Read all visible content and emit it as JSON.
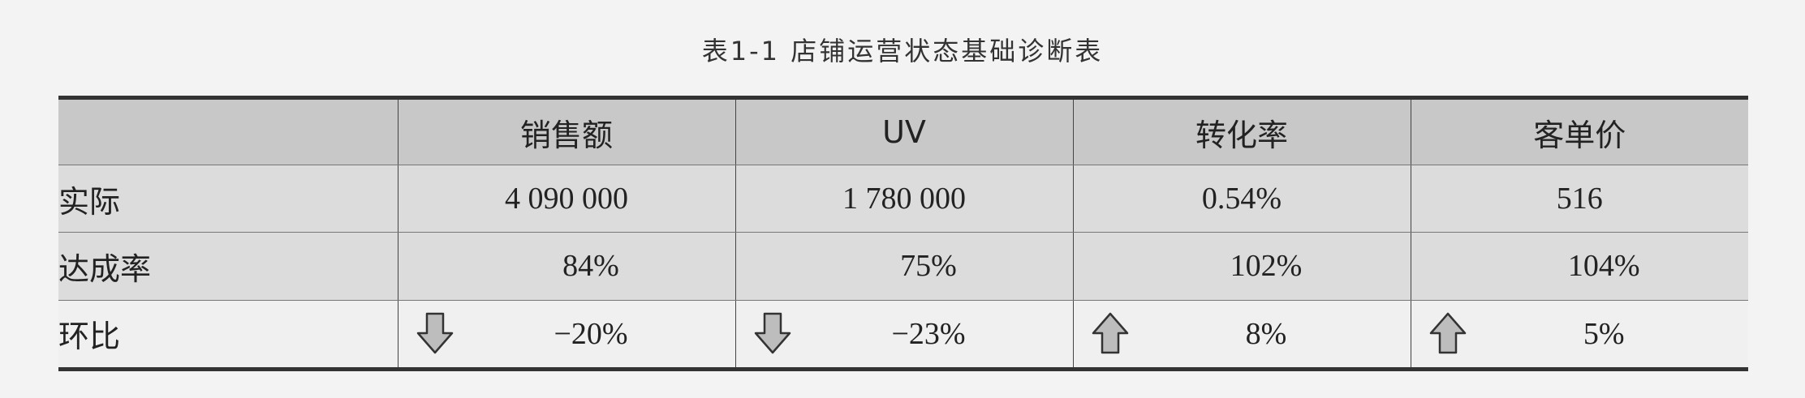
{
  "caption": "表1-1  店铺运营状态基础诊断表",
  "headers": [
    "",
    "销售额",
    "UV",
    "转化率",
    "客单价"
  ],
  "rows": {
    "actual": {
      "label": "实际",
      "values": [
        "4 090 000",
        "1 780 000",
        "0.54%",
        "516"
      ]
    },
    "rate": {
      "label": "达成率",
      "values": [
        "84%",
        "75%",
        "102%",
        "104%"
      ]
    },
    "mom": {
      "label": "环比",
      "values": [
        "−20%",
        "−23%",
        "8%",
        "5%"
      ],
      "directions": [
        "down-arrow-icon",
        "down-arrow-icon",
        "up-arrow-icon",
        "up-arrow-icon"
      ]
    }
  },
  "colors": {
    "header_bg": "#c8c8c8",
    "row_bg": "#dcdcdc",
    "mom_row_bg": "#f0f0f0",
    "arrow_fill": "#bdbdbd"
  }
}
